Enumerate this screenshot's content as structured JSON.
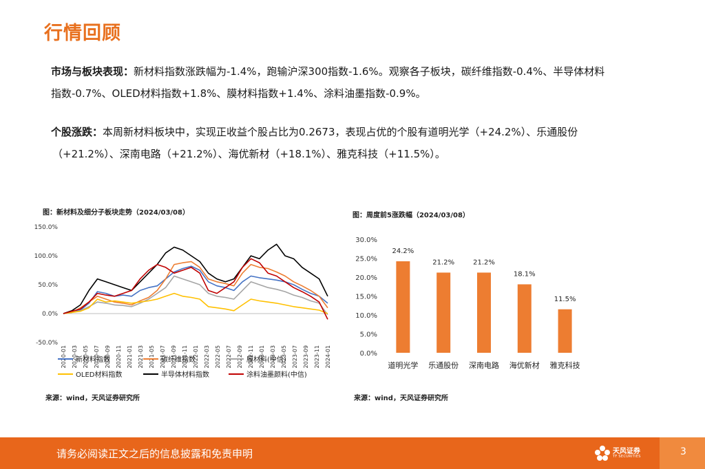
{
  "title": "行情回顾",
  "para1": {
    "lead": "市场与板块表现：",
    "line1_rest": "新材料指数涨跌幅为-1.4%，跑输沪深300指数-1.6%。观察各子板块，碳纤维指数-0.4%、半导体材料",
    "line2": "指数-0.7%、OLED材料指数+1.8%、膜材料指数+1.4%、涂料油墨指数-0.9%。"
  },
  "para2": {
    "lead": "个股涨跌：",
    "line1_rest": "本周新材料板块中，实现正收益个股占比为0.2673，表现占优的个股有道明光学（+24.2%）、乐通股份",
    "line2": "（+21.2%）、深南电路（+21.2%）、海优新材（+18.1%）、雅克科技（+11.5%）。"
  },
  "chart1_caption": "图：新材料及细分子板块走势（2024/03/08）",
  "chart2_caption": "图：周度前5涨跌幅（2024/03/08）",
  "source1": "来源：wind，天风证券研究所",
  "source2": "来源：wind，天风证券研究所",
  "footer": {
    "disclaimer": "请务必阅读正文之后的信息披露和免责申明",
    "logo_cn": "天风证券",
    "logo_en": "TF SECURITIES",
    "page": "3"
  },
  "colors": {
    "accent": "#e8701e",
    "footer": "#e8661b"
  },
  "chart_data": [
    {
      "type": "line",
      "title": "图：新材料及细分子板块走势（2024/03/08）",
      "y_ticks": [
        "150.0%",
        "100.0%",
        "50.0%",
        "0.0%",
        "-50.0%"
      ],
      "ylim": [
        -50,
        150
      ],
      "x_ticks": [
        "2020-01",
        "2020-03",
        "2020-05",
        "2020-07",
        "2020-09",
        "2020-11",
        "2021-01",
        "2021-03",
        "2021-05",
        "2021-07",
        "2021-09",
        "2021-11",
        "2022-01",
        "2022-03",
        "2022-05",
        "2022-07",
        "2022-09",
        "2022-11",
        "2023-01",
        "2023-03",
        "2023-05",
        "2023-07",
        "2023-09",
        "2023-11",
        "2024-01"
      ],
      "legend": "bottom",
      "series": [
        {
          "name": "新材料指数",
          "color": "#4472c4",
          "values": [
            0,
            4,
            6,
            18,
            38,
            35,
            30,
            32,
            30,
            40,
            45,
            48,
            60,
            72,
            78,
            82,
            75,
            55,
            48,
            45,
            40,
            55,
            65,
            62,
            60,
            58,
            55,
            50,
            42,
            35,
            30,
            18
          ]
        },
        {
          "name": "碳纤维指数",
          "color": "#ed7d31",
          "values": [
            0,
            2,
            10,
            20,
            30,
            25,
            20,
            18,
            15,
            22,
            28,
            40,
            60,
            85,
            88,
            90,
            80,
            60,
            55,
            52,
            48,
            70,
            85,
            80,
            78,
            72,
            65,
            55,
            48,
            40,
            30,
            10
          ]
        },
        {
          "name": "膜材料(中信)",
          "color": "#a5a5a5",
          "values": [
            0,
            2,
            5,
            12,
            20,
            18,
            15,
            14,
            12,
            18,
            25,
            35,
            45,
            65,
            60,
            55,
            50,
            35,
            30,
            28,
            25,
            40,
            55,
            50,
            45,
            42,
            38,
            32,
            28,
            22,
            18,
            -2
          ]
        },
        {
          "name": "OLED材料指数",
          "color": "#ffc000",
          "values": [
            0,
            2,
            4,
            10,
            25,
            20,
            22,
            20,
            18,
            20,
            22,
            25,
            30,
            35,
            30,
            28,
            25,
            12,
            10,
            8,
            5,
            15,
            25,
            22,
            20,
            18,
            15,
            12,
            10,
            8,
            6,
            0
          ]
        },
        {
          "name": "半导体材料指数",
          "color": "#000000",
          "values": [
            0,
            5,
            15,
            40,
            60,
            55,
            50,
            45,
            40,
            55,
            70,
            85,
            105,
            115,
            110,
            100,
            90,
            70,
            60,
            55,
            60,
            80,
            100,
            95,
            110,
            120,
            100,
            95,
            80,
            70,
            60,
            30
          ]
        },
        {
          "name": "涂料油墨颜料(中信)",
          "color": "#c00000",
          "values": [
            0,
            4,
            8,
            20,
            35,
            32,
            30,
            35,
            40,
            60,
            75,
            85,
            80,
            70,
            75,
            80,
            70,
            40,
            35,
            45,
            55,
            80,
            95,
            88,
            70,
            65,
            55,
            45,
            38,
            30,
            20,
            -10
          ]
        }
      ]
    },
    {
      "type": "bar",
      "title": "图：周度前5涨跌幅（2024/03/08）",
      "categories": [
        "道明光学",
        "乐通股份",
        "深南电路",
        "海优新材",
        "雅克科技"
      ],
      "values": [
        24.2,
        21.2,
        21.2,
        18.1,
        11.5
      ],
      "labels": [
        "24.2%",
        "21.2%",
        "21.2%",
        "18.1%",
        "11.5%"
      ],
      "y_ticks": [
        "30.0%",
        "25.0%",
        "20.0%",
        "15.0%",
        "10.0%",
        "5.0%",
        "0.0%"
      ],
      "ylim": [
        0,
        30
      ],
      "color": "#ed7d31"
    }
  ]
}
